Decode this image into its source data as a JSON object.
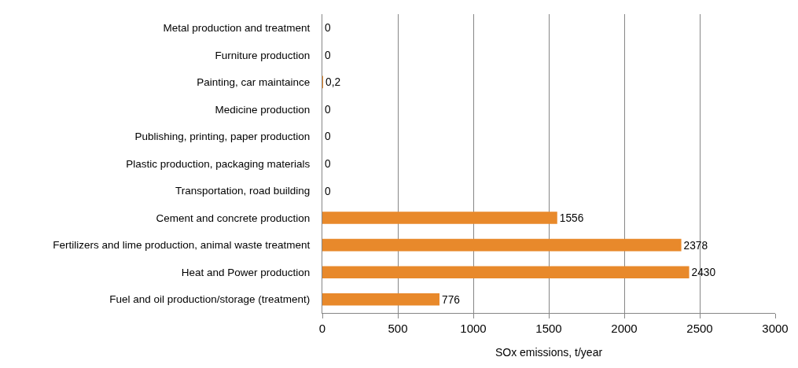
{
  "chart_data": {
    "type": "bar",
    "orientation": "horizontal",
    "categories": [
      "Metal production and treatment",
      "Furniture production",
      "Painting, car maintaince",
      "Medicine production",
      "Publishing, printing, paper production",
      "Plastic production, packaging materials",
      "Transportation, road building",
      "Cement and concrete production",
      "Fertilizers and lime production, animal waste treatment",
      "Heat and Power production",
      "Fuel and oil production/storage (treatment)"
    ],
    "values": [
      0,
      0,
      0.2,
      0,
      0,
      0,
      0,
      1556,
      2378,
      2430,
      776
    ],
    "value_labels": [
      "0",
      "0",
      "0,2",
      "0",
      "0",
      "0",
      "0",
      "1556",
      "2378",
      "2430",
      "776"
    ],
    "color": "#e8892b",
    "xlabel": "SOx emissions, t/year",
    "xlim": [
      0,
      3000
    ],
    "xticks": [
      0,
      500,
      1000,
      1500,
      2000,
      2500,
      3000
    ],
    "grid": "x"
  }
}
